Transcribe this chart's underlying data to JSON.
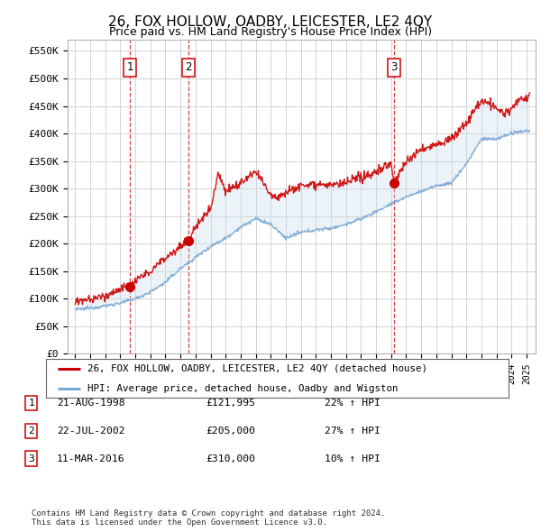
{
  "title": "26, FOX HOLLOW, OADBY, LEICESTER, LE2 4QY",
  "subtitle": "Price paid vs. HM Land Registry's House Price Index (HPI)",
  "ylabel_ticks": [
    "£0",
    "£50K",
    "£100K",
    "£150K",
    "£200K",
    "£250K",
    "£300K",
    "£350K",
    "£400K",
    "£450K",
    "£500K",
    "£550K"
  ],
  "ylim": [
    0,
    570000
  ],
  "transaction_color": "#cc0000",
  "hpi_color": "#7aa8d4",
  "fill_color": "#c8ddf0",
  "plot_bg_color": "#ffffff",
  "grid_color": "#cccccc",
  "transactions": [
    {
      "date_num": 1998.64,
      "price": 121995,
      "label": "1"
    },
    {
      "date_num": 2002.55,
      "price": 205000,
      "label": "2"
    },
    {
      "date_num": 2016.19,
      "price": 310000,
      "label": "3"
    }
  ],
  "vline_dates": [
    1998.64,
    2002.55,
    2016.19
  ],
  "legend_entries": [
    "26, FOX HOLLOW, OADBY, LEICESTER, LE2 4QY (detached house)",
    "HPI: Average price, detached house, Oadby and Wigston"
  ],
  "table_rows": [
    {
      "num": "1",
      "date": "21-AUG-1998",
      "price": "£121,995",
      "hpi": "22% ↑ HPI"
    },
    {
      "num": "2",
      "date": "22-JUL-2002",
      "price": "£205,000",
      "hpi": "27% ↑ HPI"
    },
    {
      "num": "3",
      "date": "11-MAR-2016",
      "price": "£310,000",
      "hpi": "10% ↑ HPI"
    }
  ],
  "footer": "Contains HM Land Registry data © Crown copyright and database right 2024.\nThis data is licensed under the Open Government Licence v3.0."
}
